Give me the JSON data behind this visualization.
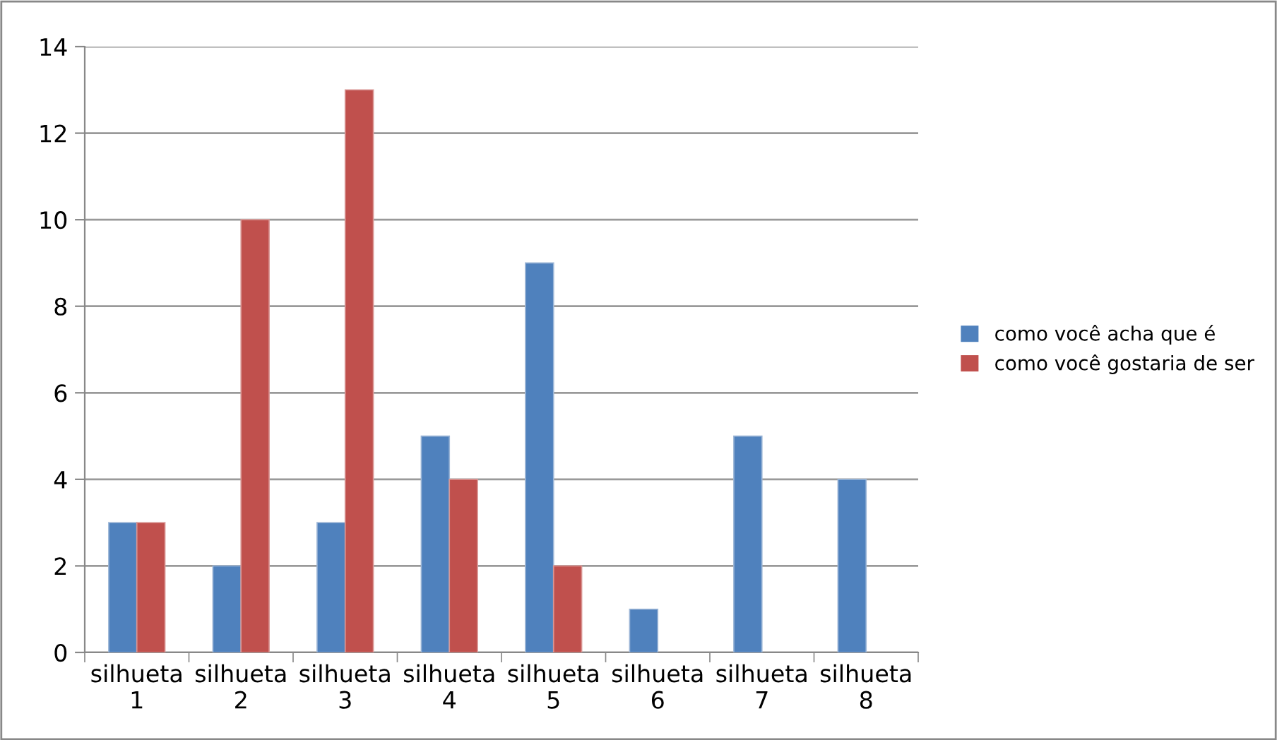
{
  "chart_data": {
    "type": "bar",
    "categories": [
      "silhueta\n1",
      "silhueta\n2",
      "silhueta\n3",
      "silhueta\n4",
      "silhueta\n5",
      "silhueta\n6",
      "silhueta\n7",
      "silhueta\n8"
    ],
    "series": [
      {
        "name": "como você acha que é",
        "color": "#4f81bd",
        "values": [
          3,
          2,
          3,
          5,
          9,
          1,
          5,
          4
        ]
      },
      {
        "name": "como você gostaria de ser",
        "color": "#c0504d",
        "values": [
          3,
          10,
          13,
          4,
          2,
          0,
          0,
          0
        ]
      }
    ],
    "ylim": [
      0,
      14
    ],
    "yticks": [
      0,
      2,
      4,
      6,
      8,
      10,
      12,
      14
    ],
    "grid": "y",
    "legend": "right"
  }
}
